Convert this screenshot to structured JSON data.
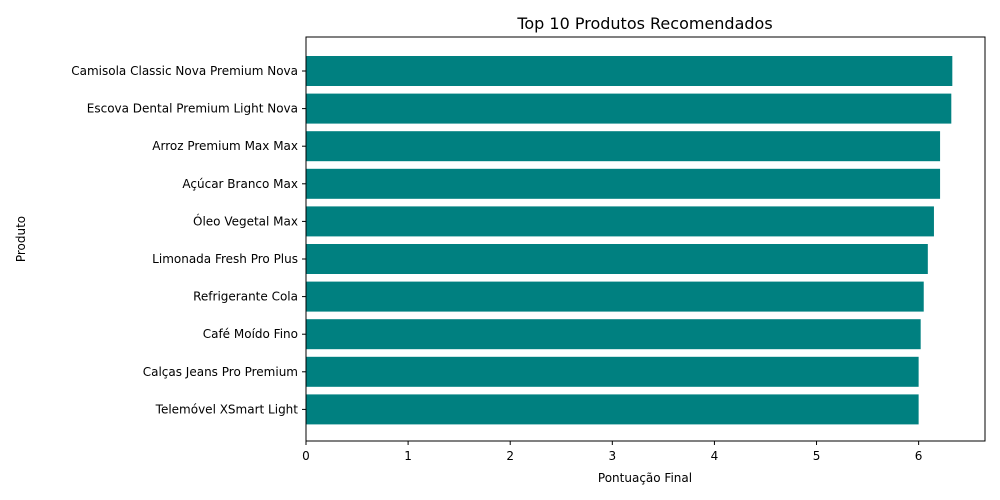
{
  "chart_data": {
    "type": "bar",
    "orientation": "horizontal",
    "title": "Top 10 Produtos Recomendados",
    "xlabel": "Pontuação Final",
    "ylabel": "Produto",
    "categories": [
      "Camisola Classic Nova Premium Nova",
      "Escova Dental Premium Light Nova",
      "Arroz Premium Max Max",
      "Açúcar Branco Max",
      "Óleo Vegetal Max",
      "Limonada Fresh Pro Plus",
      "Refrigerante Cola",
      "Café Moído Fino",
      "Calças Jeans Pro Premium",
      "Telemóvel XSmart Light"
    ],
    "values": [
      6.33,
      6.32,
      6.21,
      6.21,
      6.15,
      6.09,
      6.05,
      6.02,
      6.0,
      6.0
    ],
    "xlim": [
      0,
      6.65
    ],
    "xticks": [
      "0",
      "1",
      "2",
      "3",
      "4",
      "5",
      "6"
    ],
    "grid": false,
    "bar_color": "#008080"
  }
}
